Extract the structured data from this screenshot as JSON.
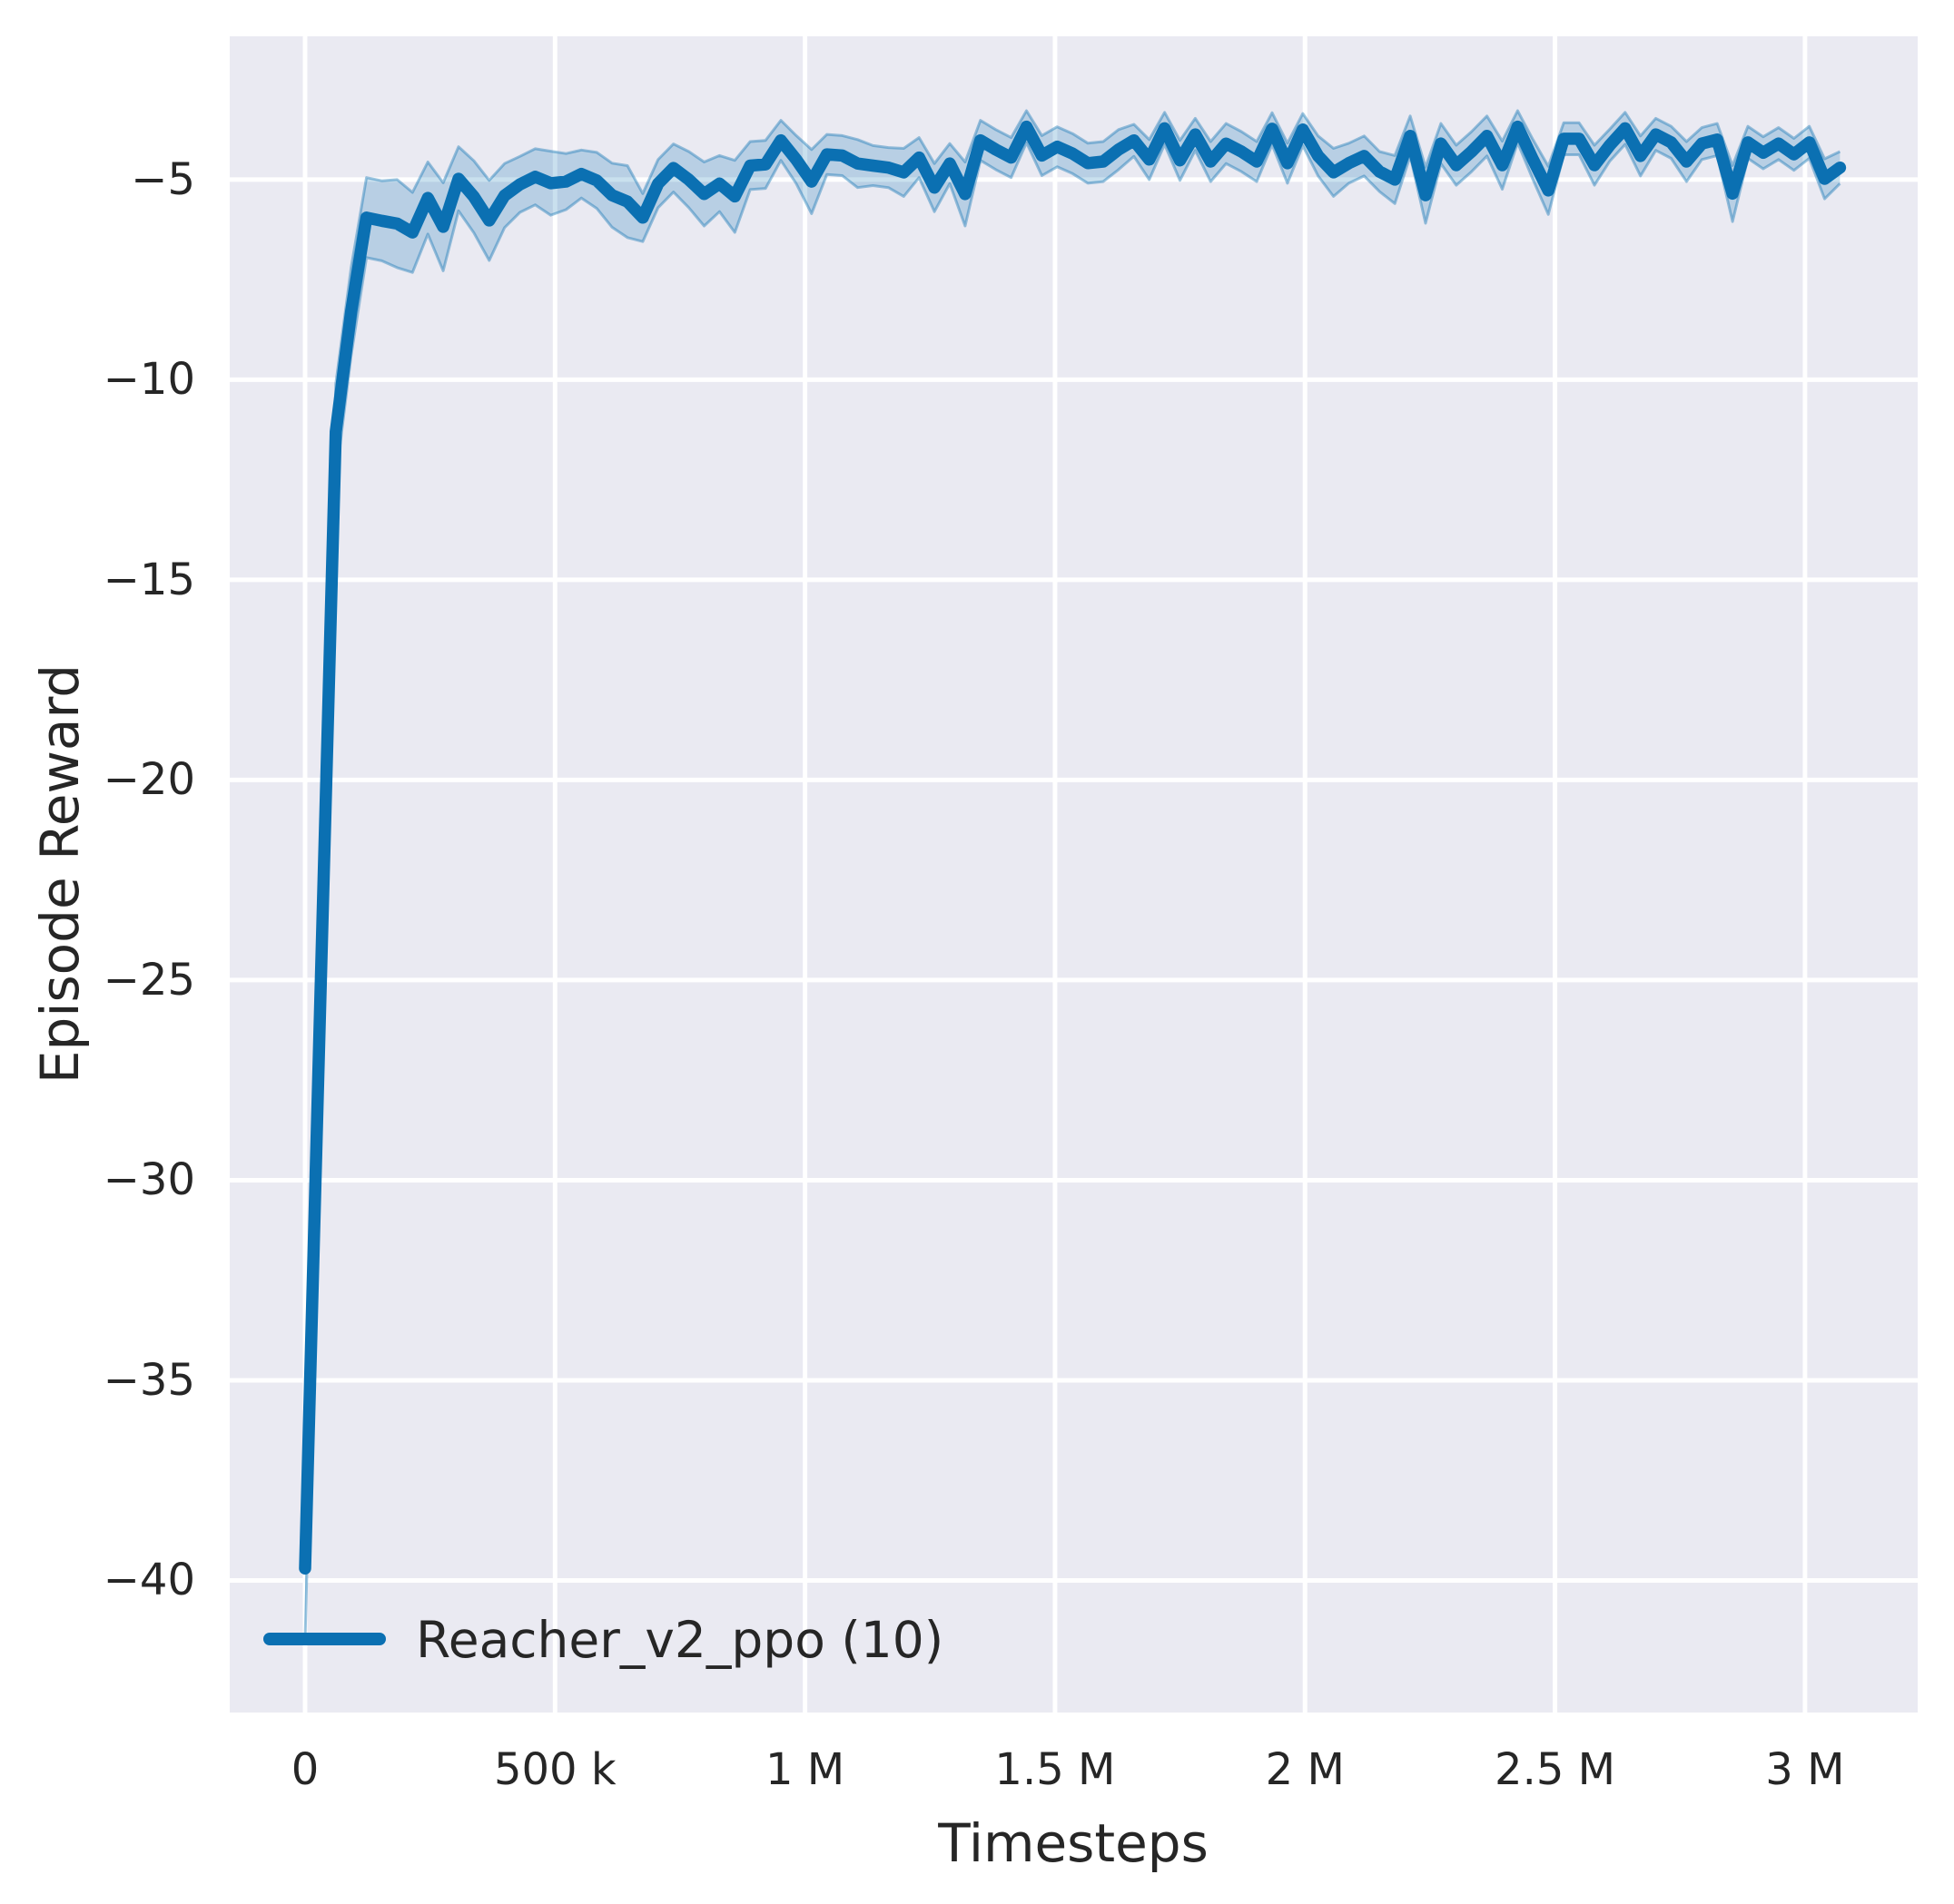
{
  "figure": {
    "xlabel": "Timesteps",
    "ylabel": "Episode Reward"
  },
  "colors": {
    "line": "#0b70b2",
    "band_fill_rgba": "rgba(11,112,178,0.22)",
    "band_edge_rgba": "rgba(11,112,178,0.40)",
    "plot_background": "#eaeaf2",
    "gridline": "#ffffff",
    "text": "#262626"
  },
  "chart_data": {
    "type": "line",
    "title": "",
    "xlabel": "Timesteps",
    "ylabel": "Episode Reward",
    "grid": true,
    "legend_position": "lower left",
    "xlim": [
      -150700,
      3225400
    ],
    "ylim": [
      -43.3,
      -1.42
    ],
    "xticks": [
      {
        "value": 0,
        "label": "0"
      },
      {
        "value": 500000,
        "label": "500 k"
      },
      {
        "value": 1000000,
        "label": "1 M"
      },
      {
        "value": 1500000,
        "label": "1.5 M"
      },
      {
        "value": 2000000,
        "label": "2 M"
      },
      {
        "value": 2500000,
        "label": "2.5 M"
      },
      {
        "value": 3000000,
        "label": "3 M"
      }
    ],
    "yticks": [
      {
        "value": -5,
        "label": "−5"
      },
      {
        "value": -10,
        "label": "−10"
      },
      {
        "value": -15,
        "label": "−15"
      },
      {
        "value": -20,
        "label": "−20"
      },
      {
        "value": -25,
        "label": "−25"
      },
      {
        "value": -30,
        "label": "−30"
      },
      {
        "value": -35,
        "label": "−35"
      },
      {
        "value": -40,
        "label": "−40"
      }
    ],
    "series": [
      {
        "name": "Reacher_v2_ppo (10)",
        "x": {
          "start": 0,
          "step": 30700,
          "count": 101
        },
        "y": [
          -39.7,
          -25.4,
          -11.3,
          -8.3,
          -5.95,
          -6.03,
          -6.1,
          -6.32,
          -5.46,
          -6.18,
          -4.98,
          -5.43,
          -6.02,
          -5.4,
          -5.12,
          -4.93,
          -5.09,
          -5.05,
          -4.86,
          -5.02,
          -5.39,
          -5.55,
          -5.95,
          -5.1,
          -4.71,
          -5.0,
          -5.36,
          -5.1,
          -5.42,
          -4.65,
          -4.62,
          -4.02,
          -4.5,
          -5.05,
          -4.37,
          -4.4,
          -4.6,
          -4.65,
          -4.7,
          -4.82,
          -4.45,
          -5.2,
          -4.6,
          -5.36,
          -4.02,
          -4.25,
          -4.45,
          -3.68,
          -4.4,
          -4.18,
          -4.35,
          -4.59,
          -4.55,
          -4.25,
          -4.02,
          -4.5,
          -3.72,
          -4.52,
          -3.87,
          -4.55,
          -4.1,
          -4.3,
          -4.55,
          -3.73,
          -4.59,
          -3.75,
          -4.41,
          -4.82,
          -4.59,
          -4.41,
          -4.8,
          -5.0,
          -3.91,
          -5.39,
          -4.1,
          -4.64,
          -4.3,
          -3.91,
          -4.64,
          -3.68,
          -4.5,
          -5.27,
          -3.98,
          -3.98,
          -4.64,
          -4.14,
          -3.72,
          -4.41,
          -3.87,
          -4.07,
          -4.55,
          -4.1,
          -4.0,
          -5.35,
          -4.07,
          -4.33,
          -4.1,
          -4.37,
          -4.07,
          -4.98,
          -4.7
        ],
        "ci_halfwidth": [
          1.8,
          1.5,
          1.2,
          1.1,
          1.0,
          1.0,
          1.1,
          1.0,
          0.9,
          1.1,
          0.8,
          0.9,
          1.0,
          0.8,
          0.7,
          0.7,
          0.8,
          0.7,
          0.6,
          0.7,
          0.8,
          0.9,
          0.6,
          0.6,
          0.6,
          0.7,
          0.8,
          0.7,
          0.9,
          0.6,
          0.6,
          0.5,
          0.6,
          0.8,
          0.5,
          0.5,
          0.6,
          0.5,
          0.5,
          0.6,
          0.5,
          0.6,
          0.5,
          0.8,
          0.5,
          0.5,
          0.5,
          0.4,
          0.5,
          0.5,
          0.5,
          0.5,
          0.5,
          0.5,
          0.4,
          0.5,
          0.4,
          0.5,
          0.4,
          0.5,
          0.5,
          0.5,
          0.5,
          0.4,
          0.5,
          0.4,
          0.5,
          0.6,
          0.5,
          0.5,
          0.5,
          0.6,
          0.5,
          0.7,
          0.5,
          0.5,
          0.5,
          0.5,
          0.6,
          0.4,
          0.5,
          0.6,
          0.4,
          0.4,
          0.5,
          0.4,
          0.4,
          0.5,
          0.4,
          0.4,
          0.5,
          0.4,
          0.4,
          0.7,
          0.4,
          0.4,
          0.4,
          0.4,
          0.4,
          0.5,
          0.4
        ]
      }
    ]
  }
}
